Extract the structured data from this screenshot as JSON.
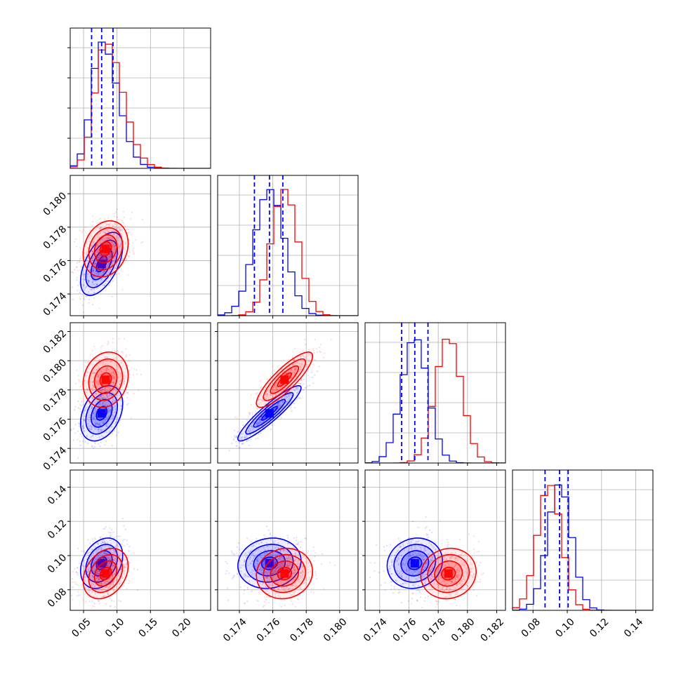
{
  "colors": {
    "series_a": "#0000ff",
    "series_b": "#ff0000",
    "grid": "#b0b0b0",
    "frame": "#000000"
  },
  "chart_data": {
    "type": "corner",
    "title": "",
    "grid": true,
    "n_params": 4,
    "series": [
      {
        "color": "blue",
        "means": [
          0.077,
          0.1758,
          0.1764,
          0.0955
        ],
        "sigmas": [
          0.015,
          0.0009,
          0.0009,
          0.007
        ],
        "quantile_lines": [
          [
            0.062,
            0.077,
            0.094
          ],
          [
            0.1749,
            0.1758,
            0.1766
          ],
          [
            0.1755,
            0.1764,
            0.1773
          ],
          [
            0.087,
            0.0955,
            0.1005
          ]
        ],
        "correlations": [
          [
            1,
            0.55,
            0.35,
            0.3
          ],
          [
            0.55,
            1,
            0.92,
            0.1
          ],
          [
            0.35,
            0.92,
            1,
            0.1
          ],
          [
            0.3,
            0.1,
            0.1,
            1
          ]
        ]
      },
      {
        "color": "red",
        "means": [
          0.083,
          0.1767,
          0.1787,
          0.0895
        ],
        "sigmas": [
          0.016,
          0.0008,
          0.0009,
          0.007
        ],
        "quantile_lines": null,
        "correlations": [
          [
            1,
            0.2,
            0.15,
            0.3
          ],
          [
            0.2,
            1,
            0.85,
            0.08
          ],
          [
            0.15,
            0.85,
            1,
            0.08
          ],
          [
            0.3,
            0.08,
            0.08,
            1
          ]
        ]
      }
    ],
    "params": [
      {
        "range": [
          0.03,
          0.24
        ],
        "ticks": [
          0.05,
          0.1,
          0.15,
          0.2
        ],
        "tick_labels": [
          "0.05",
          "0.10",
          "0.15",
          "0.20"
        ]
      },
      {
        "range": [
          0.1727,
          0.1811
        ],
        "ticks": [
          0.174,
          0.176,
          0.178,
          0.18
        ],
        "tick_labels": [
          "0.174",
          "0.176",
          "0.178",
          "0.180"
        ]
      },
      {
        "range": [
          0.173,
          0.1826
        ],
        "ticks": [
          0.174,
          0.176,
          0.178,
          0.18,
          0.182
        ],
        "tick_labels": [
          "0.174",
          "0.176",
          "0.178",
          "0.180",
          "0.182"
        ]
      },
      {
        "range": [
          0.068,
          0.15
        ],
        "ticks": [
          0.08,
          0.1,
          0.12,
          0.14
        ],
        "tick_labels": [
          "0.08",
          "0.10",
          "0.12",
          "0.14"
        ]
      }
    ],
    "histogram_bins": 20,
    "contour_levels_sigma": [
      0.5,
      1.0,
      1.5,
      2.0
    ]
  }
}
